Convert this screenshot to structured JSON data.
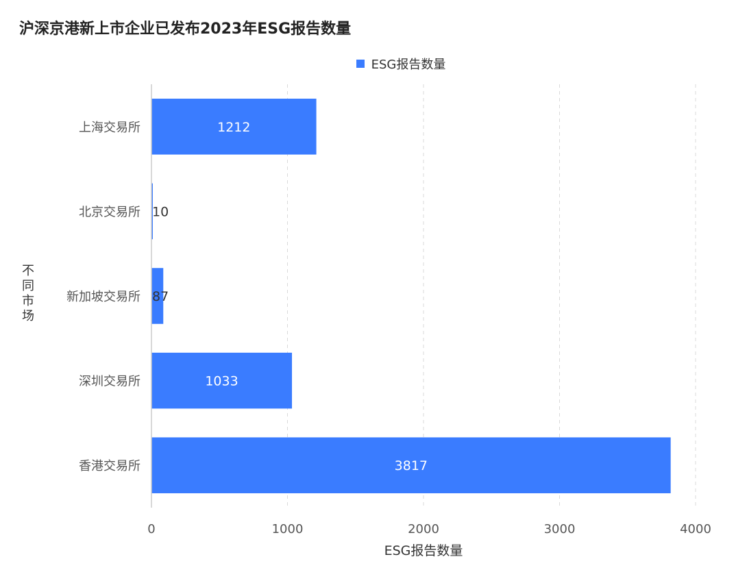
{
  "chart_data": {
    "type": "bar",
    "orientation": "horizontal",
    "title": "沪深京港新上市企业已发布2023年ESG报告数量",
    "xlabel": "ESG报告数量",
    "ylabel": "不同市场",
    "categories": [
      "上海交易所",
      "北京交易所",
      "新加坡交易所",
      "深圳交易所",
      "香港交易所"
    ],
    "series": [
      {
        "name": "ESG报告数量",
        "values": [
          1212,
          10,
          87,
          1033,
          3817
        ]
      }
    ],
    "xlim": [
      0,
      4000
    ],
    "xticks": [
      "0",
      "1000",
      "2000",
      "3000",
      "4000"
    ],
    "grid": "x-dashed",
    "legend": "top-center",
    "data_labels": true,
    "bar_color": "#3a7cff"
  }
}
